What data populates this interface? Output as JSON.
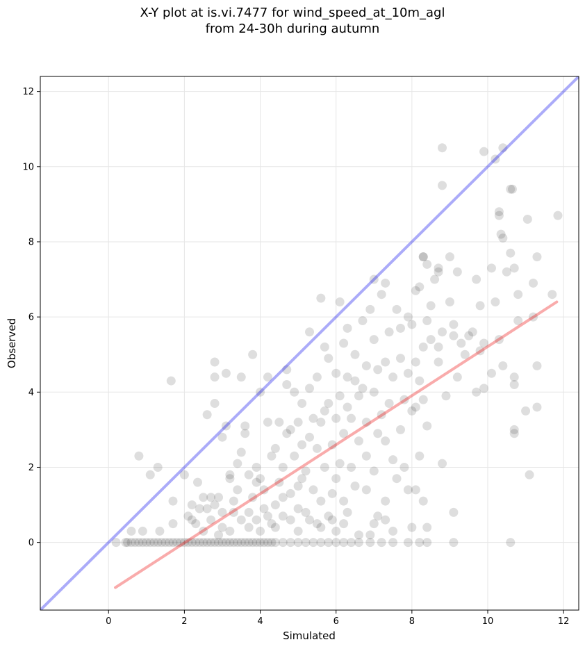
{
  "chart_data": {
    "type": "scatter",
    "title": [
      "X-Y plot at is.vi.7477 for wind_speed_at_10m_agl",
      "from 24-30h during autumn"
    ],
    "xlabel": "Simulated",
    "ylabel": "Observed",
    "xlim": [
      -1.8,
      12.4
    ],
    "ylim": [
      -1.8,
      12.4
    ],
    "xticks": [
      0,
      2,
      4,
      6,
      8,
      10,
      12
    ],
    "yticks": [
      0,
      2,
      4,
      6,
      8,
      10,
      12
    ],
    "grid": true,
    "colors": {
      "points": "#000000",
      "identity": "#0000ee",
      "fit": "#ee0000"
    },
    "identity_line": {
      "x": [
        -1.8,
        12.4
      ],
      "y": [
        -1.8,
        12.4
      ]
    },
    "fit_line": {
      "x": [
        0.18,
        11.82
      ],
      "y": [
        -1.2,
        6.4
      ]
    },
    "points": [
      [
        0.2,
        0.0
      ],
      [
        0.45,
        0.0
      ],
      [
        0.5,
        0.0
      ],
      [
        0.6,
        0.0
      ],
      [
        0.7,
        0.0
      ],
      [
        0.8,
        0.0
      ],
      [
        0.9,
        0.0
      ],
      [
        1.0,
        0.0
      ],
      [
        1.1,
        0.0
      ],
      [
        1.2,
        0.0
      ],
      [
        1.3,
        0.0
      ],
      [
        1.4,
        0.0
      ],
      [
        1.5,
        0.0
      ],
      [
        1.6,
        0.0
      ],
      [
        1.7,
        0.0
      ],
      [
        1.8,
        0.0
      ],
      [
        1.9,
        0.0
      ],
      [
        2.0,
        0.0
      ],
      [
        2.1,
        0.0
      ],
      [
        2.2,
        0.0
      ],
      [
        2.3,
        0.0
      ],
      [
        2.4,
        0.0
      ],
      [
        2.5,
        0.0
      ],
      [
        2.6,
        0.0
      ],
      [
        2.7,
        0.0
      ],
      [
        2.8,
        0.0
      ],
      [
        2.9,
        0.0
      ],
      [
        3.0,
        0.0
      ],
      [
        3.1,
        0.0
      ],
      [
        3.2,
        0.0
      ],
      [
        3.3,
        0.0
      ],
      [
        3.4,
        0.0
      ],
      [
        3.5,
        0.0
      ],
      [
        3.6,
        0.0
      ],
      [
        3.7,
        0.0
      ],
      [
        3.8,
        0.0
      ],
      [
        3.9,
        0.0
      ],
      [
        4.0,
        0.0
      ],
      [
        4.1,
        0.0
      ],
      [
        4.2,
        0.0
      ],
      [
        4.3,
        0.0
      ],
      [
        4.4,
        0.0
      ],
      [
        4.6,
        0.0
      ],
      [
        4.8,
        0.0
      ],
      [
        5.0,
        0.0
      ],
      [
        5.2,
        0.0
      ],
      [
        5.4,
        0.0
      ],
      [
        5.6,
        0.0
      ],
      [
        5.8,
        0.0
      ],
      [
        6.0,
        0.0
      ],
      [
        6.2,
        0.0
      ],
      [
        6.4,
        0.0
      ],
      [
        6.6,
        0.0
      ],
      [
        6.9,
        0.0
      ],
      [
        7.2,
        0.0
      ],
      [
        7.5,
        0.0
      ],
      [
        7.9,
        0.0
      ],
      [
        8.2,
        0.0
      ],
      [
        8.4,
        0.0
      ],
      [
        9.1,
        0.0
      ],
      [
        10.6,
        0.0
      ],
      [
        0.8,
        2.3
      ],
      [
        1.1,
        1.8
      ],
      [
        1.3,
        2.0
      ],
      [
        1.7,
        1.1
      ],
      [
        1.65,
        4.3
      ],
      [
        0.9,
        0.3
      ],
      [
        0.6,
        0.3
      ],
      [
        1.35,
        0.3
      ],
      [
        1.7,
        0.5
      ],
      [
        2.0,
        1.8
      ],
      [
        2.1,
        0.7
      ],
      [
        2.2,
        1.0
      ],
      [
        2.3,
        0.5
      ],
      [
        2.35,
        1.6
      ],
      [
        2.5,
        1.2
      ],
      [
        2.6,
        0.9
      ],
      [
        2.6,
        3.4
      ],
      [
        2.7,
        1.2
      ],
      [
        2.8,
        1.0
      ],
      [
        2.8,
        3.7
      ],
      [
        2.8,
        4.4
      ],
      [
        2.8,
        4.8
      ],
      [
        2.9,
        1.2
      ],
      [
        3.0,
        0.8
      ],
      [
        3.0,
        2.8
      ],
      [
        3.1,
        3.1
      ],
      [
        3.1,
        4.5
      ],
      [
        3.2,
        1.8
      ],
      [
        3.2,
        1.7
      ],
      [
        3.3,
        1.1
      ],
      [
        3.4,
        1.4
      ],
      [
        3.4,
        2.1
      ],
      [
        3.5,
        2.4
      ],
      [
        3.5,
        4.4
      ],
      [
        3.6,
        2.9
      ],
      [
        3.6,
        3.1
      ],
      [
        3.7,
        0.8
      ],
      [
        3.7,
        1.8
      ],
      [
        3.8,
        1.2
      ],
      [
        3.8,
        5.0
      ],
      [
        3.9,
        2.0
      ],
      [
        3.9,
        0.6
      ],
      [
        4.0,
        1.7
      ],
      [
        4.0,
        4.0
      ],
      [
        4.1,
        0.9
      ],
      [
        4.1,
        1.4
      ],
      [
        4.2,
        3.2
      ],
      [
        4.2,
        4.4
      ],
      [
        4.3,
        0.5
      ],
      [
        4.3,
        2.3
      ],
      [
        4.4,
        1.0
      ],
      [
        4.4,
        2.5
      ],
      [
        4.5,
        3.2
      ],
      [
        4.5,
        1.6
      ],
      [
        4.6,
        0.7
      ],
      [
        4.6,
        2.0
      ],
      [
        4.7,
        2.9
      ],
      [
        4.7,
        4.2
      ],
      [
        4.7,
        4.6
      ],
      [
        4.8,
        1.3
      ],
      [
        4.8,
        3.0
      ],
      [
        4.9,
        2.3
      ],
      [
        4.9,
        4.0
      ],
      [
        5.0,
        0.9
      ],
      [
        5.0,
        1.5
      ],
      [
        5.0,
        3.2
      ],
      [
        5.1,
        3.7
      ],
      [
        5.1,
        2.6
      ],
      [
        5.2,
        0.8
      ],
      [
        5.2,
        1.9
      ],
      [
        5.3,
        2.8
      ],
      [
        5.3,
        4.1
      ],
      [
        5.3,
        5.6
      ],
      [
        5.4,
        1.4
      ],
      [
        5.4,
        3.3
      ],
      [
        5.5,
        0.5
      ],
      [
        5.5,
        2.5
      ],
      [
        5.5,
        4.4
      ],
      [
        5.6,
        1.1
      ],
      [
        5.6,
        3.2
      ],
      [
        5.6,
        6.5
      ],
      [
        5.7,
        2.0
      ],
      [
        5.7,
        3.5
      ],
      [
        5.7,
        5.2
      ],
      [
        5.8,
        0.7
      ],
      [
        5.8,
        3.7
      ],
      [
        5.8,
        4.9
      ],
      [
        5.9,
        1.3
      ],
      [
        5.9,
        2.6
      ],
      [
        6.0,
        0.3
      ],
      [
        6.0,
        1.7
      ],
      [
        6.0,
        3.3
      ],
      [
        6.0,
        4.5
      ],
      [
        6.1,
        2.1
      ],
      [
        6.1,
        3.9
      ],
      [
        6.1,
        6.4
      ],
      [
        6.2,
        1.1
      ],
      [
        6.2,
        2.9
      ],
      [
        6.2,
        5.3
      ],
      [
        6.3,
        0.8
      ],
      [
        6.3,
        3.6
      ],
      [
        6.3,
        4.4
      ],
      [
        6.3,
        5.7
      ],
      [
        6.4,
        2.0
      ],
      [
        6.4,
        3.3
      ],
      [
        6.5,
        1.5
      ],
      [
        6.5,
        4.3
      ],
      [
        6.5,
        5.0
      ],
      [
        6.6,
        2.7
      ],
      [
        6.6,
        3.9
      ],
      [
        6.7,
        4.1
      ],
      [
        6.7,
        5.9
      ],
      [
        6.8,
        1.4
      ],
      [
        6.8,
        2.3
      ],
      [
        6.8,
        3.2
      ],
      [
        6.8,
        4.7
      ],
      [
        6.9,
        6.2
      ],
      [
        7.0,
        0.5
      ],
      [
        7.0,
        1.9
      ],
      [
        7.0,
        4.0
      ],
      [
        7.0,
        5.4
      ],
      [
        7.0,
        7.0
      ],
      [
        7.1,
        0.7
      ],
      [
        7.1,
        2.9
      ],
      [
        7.1,
        4.6
      ],
      [
        7.2,
        3.4
      ],
      [
        7.2,
        6.6
      ],
      [
        7.3,
        1.1
      ],
      [
        7.3,
        2.7
      ],
      [
        7.3,
        4.8
      ],
      [
        7.3,
        6.9
      ],
      [
        7.4,
        3.7
      ],
      [
        7.4,
        5.6
      ],
      [
        7.5,
        2.2
      ],
      [
        7.5,
        4.4
      ],
      [
        7.6,
        1.7
      ],
      [
        7.6,
        6.2
      ],
      [
        7.7,
        3.0
      ],
      [
        7.7,
        4.9
      ],
      [
        7.7,
        5.7
      ],
      [
        7.8,
        2.0
      ],
      [
        7.8,
        3.8
      ],
      [
        7.9,
        4.5
      ],
      [
        7.9,
        6.0
      ],
      [
        8.0,
        0.4
      ],
      [
        8.0,
        3.5
      ],
      [
        8.0,
        5.8
      ],
      [
        8.1,
        1.4
      ],
      [
        8.1,
        3.6
      ],
      [
        8.1,
        4.8
      ],
      [
        8.1,
        6.7
      ],
      [
        8.2,
        2.3
      ],
      [
        8.2,
        4.3
      ],
      [
        8.2,
        6.8
      ],
      [
        8.3,
        1.1
      ],
      [
        8.3,
        3.8
      ],
      [
        8.3,
        5.2
      ],
      [
        8.3,
        7.6
      ],
      [
        8.4,
        0.4
      ],
      [
        8.4,
        3.1
      ],
      [
        8.4,
        5.9
      ],
      [
        8.4,
        7.4
      ],
      [
        8.5,
        5.4
      ],
      [
        8.5,
        6.3
      ],
      [
        8.6,
        7.0
      ],
      [
        8.7,
        4.8
      ],
      [
        8.7,
        5.2
      ],
      [
        8.7,
        7.2
      ],
      [
        8.8,
        2.1
      ],
      [
        8.8,
        5.6
      ],
      [
        8.8,
        9.5
      ],
      [
        8.8,
        10.5
      ],
      [
        8.9,
        3.9
      ],
      [
        9.0,
        6.4
      ],
      [
        9.0,
        7.6
      ],
      [
        9.1,
        0.8
      ],
      [
        9.1,
        5.5
      ],
      [
        9.1,
        5.8
      ],
      [
        9.2,
        4.4
      ],
      [
        9.2,
        7.2
      ],
      [
        9.3,
        5.3
      ],
      [
        9.4,
        5.0
      ],
      [
        9.5,
        5.5
      ],
      [
        9.6,
        5.6
      ],
      [
        9.7,
        4.0
      ],
      [
        9.7,
        7.0
      ],
      [
        9.8,
        5.1
      ],
      [
        9.8,
        6.3
      ],
      [
        9.9,
        4.1
      ],
      [
        9.9,
        5.3
      ],
      [
        9.9,
        10.4
      ],
      [
        10.1,
        4.5
      ],
      [
        10.1,
        7.3
      ],
      [
        10.2,
        6.4
      ],
      [
        10.2,
        10.2
      ],
      [
        10.3,
        5.4
      ],
      [
        10.3,
        8.8
      ],
      [
        10.35,
        8.2
      ],
      [
        10.4,
        4.7
      ],
      [
        10.4,
        8.1
      ],
      [
        10.4,
        10.5
      ],
      [
        10.5,
        7.2
      ],
      [
        10.6,
        7.7
      ],
      [
        10.6,
        9.4
      ],
      [
        10.7,
        4.2
      ],
      [
        10.7,
        4.4
      ],
      [
        10.7,
        3.0
      ],
      [
        10.7,
        2.9
      ],
      [
        10.7,
        7.3
      ],
      [
        10.8,
        5.9
      ],
      [
        10.8,
        6.6
      ],
      [
        11.0,
        3.5
      ],
      [
        11.05,
        8.6
      ],
      [
        11.1,
        1.8
      ],
      [
        11.2,
        6.0
      ],
      [
        11.2,
        6.9
      ],
      [
        11.3,
        4.7
      ],
      [
        11.3,
        7.6
      ],
      [
        11.3,
        3.6
      ],
      [
        11.7,
        6.6
      ],
      [
        11.85,
        8.7
      ],
      [
        10.65,
        9.4
      ],
      [
        10.3,
        8.7
      ],
      [
        8.3,
        7.6
      ],
      [
        8.7,
        7.3
      ],
      [
        2.2,
        0.6
      ],
      [
        2.4,
        0.9
      ],
      [
        2.5,
        0.3
      ],
      [
        2.7,
        0.6
      ],
      [
        2.9,
        0.2
      ],
      [
        3.0,
        0.4
      ],
      [
        3.2,
        0.3
      ],
      [
        3.3,
        0.8
      ],
      [
        3.5,
        0.6
      ],
      [
        3.7,
        0.4
      ],
      [
        3.9,
        1.6
      ],
      [
        4.0,
        0.3
      ],
      [
        4.2,
        0.7
      ],
      [
        4.4,
        0.4
      ],
      [
        4.6,
        1.2
      ],
      [
        4.8,
        0.6
      ],
      [
        5.0,
        0.3
      ],
      [
        5.1,
        1.7
      ],
      [
        5.3,
        0.6
      ],
      [
        5.6,
        0.4
      ],
      [
        5.9,
        0.6
      ],
      [
        6.2,
        0.5
      ],
      [
        6.6,
        0.2
      ],
      [
        6.9,
        0.2
      ],
      [
        7.3,
        0.6
      ],
      [
        7.5,
        0.3
      ],
      [
        7.9,
        1.4
      ]
    ]
  }
}
